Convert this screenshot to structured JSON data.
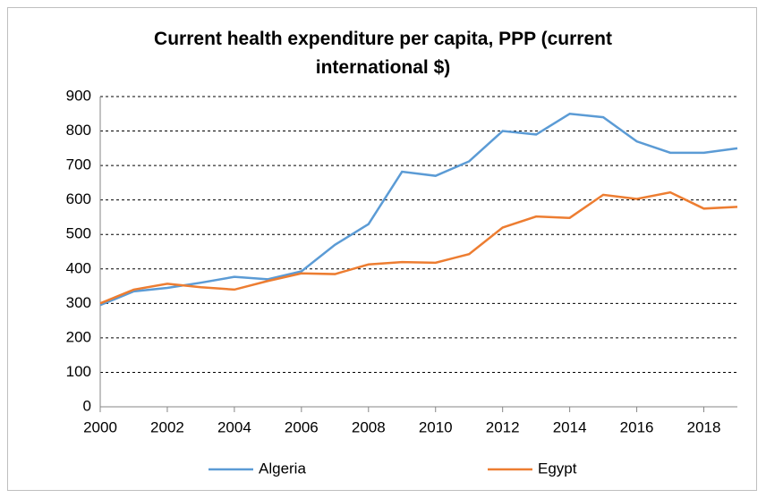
{
  "chart_data": {
    "type": "line",
    "title": "Current health expenditure per capita, PPP (current international $)",
    "x": [
      2000,
      2001,
      2002,
      2003,
      2004,
      2005,
      2006,
      2007,
      2008,
      2009,
      2010,
      2011,
      2012,
      2013,
      2014,
      2015,
      2016,
      2017,
      2018,
      2019
    ],
    "series": [
      {
        "name": "Algeria",
        "color": "#5b9bd5",
        "values": [
          295,
          335,
          345,
          360,
          377,
          370,
          393,
          470,
          530,
          682,
          670,
          712,
          800,
          790,
          850,
          840,
          770,
          737,
          737,
          750
        ]
      },
      {
        "name": "Egypt",
        "color": "#ed7d31",
        "values": [
          300,
          340,
          357,
          347,
          340,
          365,
          387,
          385,
          413,
          420,
          418,
          443,
          520,
          552,
          548,
          615,
          603,
          622,
          575,
          580
        ]
      }
    ],
    "xlim": [
      2000,
      2019
    ],
    "xticks": [
      2000,
      2002,
      2004,
      2006,
      2008,
      2010,
      2012,
      2014,
      2016,
      2018
    ],
    "ylim": [
      0,
      900
    ],
    "yticks": [
      0,
      100,
      200,
      300,
      400,
      500,
      600,
      700,
      800,
      900
    ],
    "grid": true,
    "legend": "bottom"
  }
}
